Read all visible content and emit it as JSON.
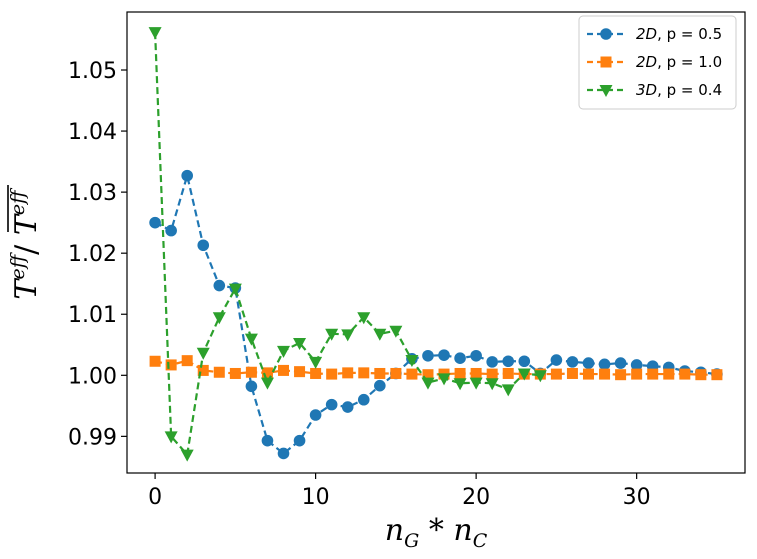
{
  "chart_data": {
    "type": "line",
    "title": "",
    "xlabel_parts": [
      "n",
      "G",
      " * ",
      "n",
      "C"
    ],
    "ylabel_parts": [
      "T",
      "eff",
      "/ ",
      "T",
      "eff"
    ],
    "xlim": [
      -1.75,
      36.75
    ],
    "ylim": [
      0.984,
      1.0595
    ],
    "xticks": [
      0,
      10,
      20,
      30
    ],
    "yticks": [
      0.99,
      1.0,
      1.01,
      1.02,
      1.03,
      1.04,
      1.05
    ],
    "ytick_labels": [
      "0.99",
      "1.00",
      "1.01",
      "1.02",
      "1.03",
      "1.04",
      "1.05"
    ],
    "xtick_labels": [
      "0",
      "10",
      "20",
      "30"
    ],
    "legend_position": "top-right",
    "series": [
      {
        "name": "2D, p = 0.5",
        "legend_parts": [
          "2D",
          ", p = 0.5"
        ],
        "color": "#1f77b4",
        "marker": "circle",
        "x": [
          0,
          1,
          2,
          3,
          4,
          5,
          6,
          7,
          8,
          9,
          10,
          11,
          12,
          13,
          14,
          15,
          16,
          17,
          18,
          19,
          20,
          21,
          22,
          23,
          24,
          25,
          26,
          27,
          28,
          29,
          30,
          31,
          32,
          33,
          34,
          35
        ],
        "y": [
          1.025,
          1.0237,
          1.0327,
          1.0213,
          1.0147,
          1.0143,
          0.9982,
          0.9893,
          0.9872,
          0.9893,
          0.9935,
          0.9952,
          0.9948,
          0.996,
          0.9983,
          1.0003,
          1.0027,
          1.0032,
          1.0033,
          1.0028,
          1.0032,
          1.0022,
          1.0023,
          1.0023,
          1.0003,
          1.0025,
          1.0022,
          1.002,
          1.0018,
          1.002,
          1.0017,
          1.0015,
          1.0013,
          1.0007,
          1.0005,
          1.0002
        ]
      },
      {
        "name": "2D, p = 1.0",
        "legend_parts": [
          "2D",
          ", p = 1.0"
        ],
        "color": "#ff7f0e",
        "marker": "square",
        "x": [
          0,
          1,
          2,
          3,
          4,
          5,
          6,
          7,
          8,
          9,
          10,
          11,
          12,
          13,
          14,
          15,
          16,
          17,
          18,
          19,
          20,
          21,
          22,
          23,
          24,
          25,
          26,
          27,
          28,
          29,
          30,
          31,
          32,
          33,
          34,
          35
        ],
        "y": [
          1.0023,
          1.0017,
          1.0024,
          1.0008,
          1.0005,
          1.0003,
          1.0005,
          1.0004,
          1.0008,
          1.0006,
          1.0003,
          1.0002,
          1.0004,
          1.0004,
          1.0003,
          1.0003,
          1.0002,
          1.0001,
          1.0002,
          1.0003,
          1.0003,
          1.0002,
          1.0003,
          1.0002,
          1.0002,
          1.0002,
          1.0003,
          1.0002,
          1.0002,
          1.0001,
          1.0002,
          1.0002,
          1.0002,
          1.0002,
          1.0001,
          1.0001
        ]
      },
      {
        "name": "3D, p = 0.4",
        "legend_parts": [
          "3D",
          ", p = 0.4"
        ],
        "color": "#2ca02c",
        "marker": "triangle-down",
        "x": [
          0,
          1,
          2,
          3,
          4,
          5,
          6,
          7,
          8,
          9,
          10,
          11,
          12,
          13,
          14,
          15,
          16,
          17,
          18,
          19,
          20,
          21,
          22,
          23,
          24
        ],
        "y": [
          1.0562,
          0.99,
          0.987,
          1.0037,
          1.0095,
          1.0142,
          1.006,
          0.9988,
          1.004,
          1.0053,
          1.0022,
          1.0068,
          1.0067,
          1.0095,
          1.0068,
          1.0073,
          1.0025,
          0.9988,
          0.9995,
          0.9987,
          0.9988,
          0.9987,
          0.9977,
          1.0003,
          1.0
        ]
      }
    ]
  }
}
